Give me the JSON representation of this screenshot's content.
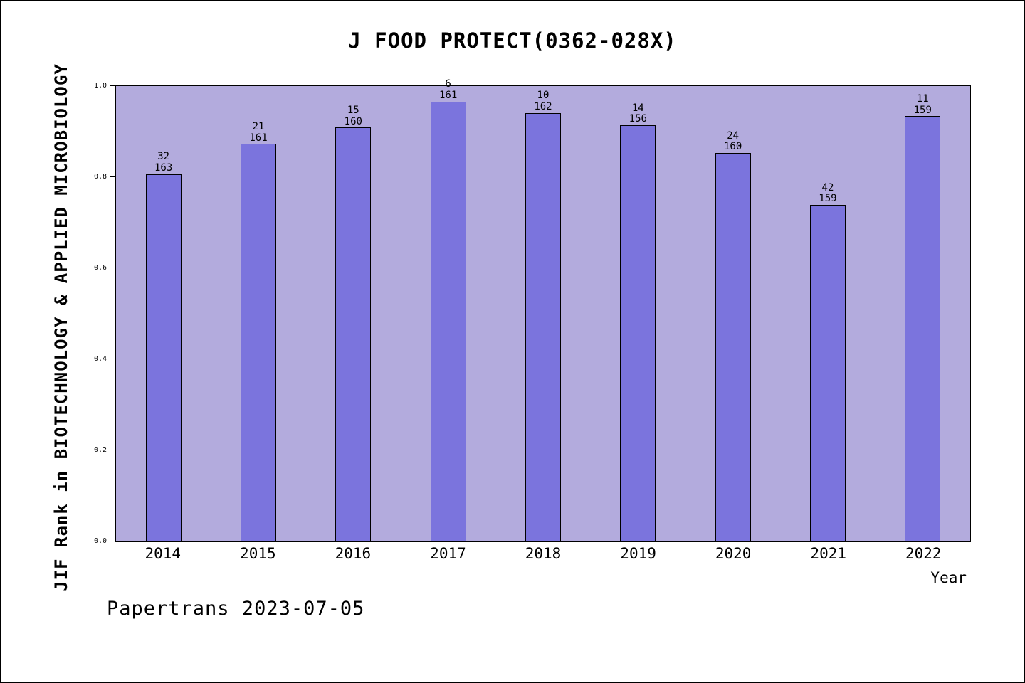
{
  "title": "J FOOD PROTECT(0362-028X)",
  "footer": "Papertrans 2023-07-05",
  "chart_data": {
    "type": "bar",
    "title": "J FOOD PROTECT(0362-028X)",
    "xlabel": "Year",
    "ylabel": "JIF Rank in BIOTECHNOLOGY & APPLIED MICROBIOLOGY",
    "categories": [
      "2014",
      "2015",
      "2016",
      "2017",
      "2018",
      "2019",
      "2020",
      "2021",
      "2022"
    ],
    "ranks": [
      32,
      21,
      15,
      6,
      10,
      14,
      24,
      42,
      11
    ],
    "totals": [
      163,
      161,
      160,
      161,
      162,
      156,
      160,
      159,
      159
    ],
    "values": [
      0.807,
      0.873,
      0.909,
      0.966,
      0.941,
      0.914,
      0.853,
      0.739,
      0.934
    ],
    "ylim": [
      0.0,
      1.0
    ],
    "yticks": [
      "0.0",
      "0.2",
      "0.4",
      "0.6",
      "0.8",
      "1.0"
    ],
    "grid": false,
    "legend": "none",
    "colors": {
      "bar_fill": "#7b74dd",
      "bar_border": "#000000",
      "plot_background": "#b3abdd"
    }
  }
}
